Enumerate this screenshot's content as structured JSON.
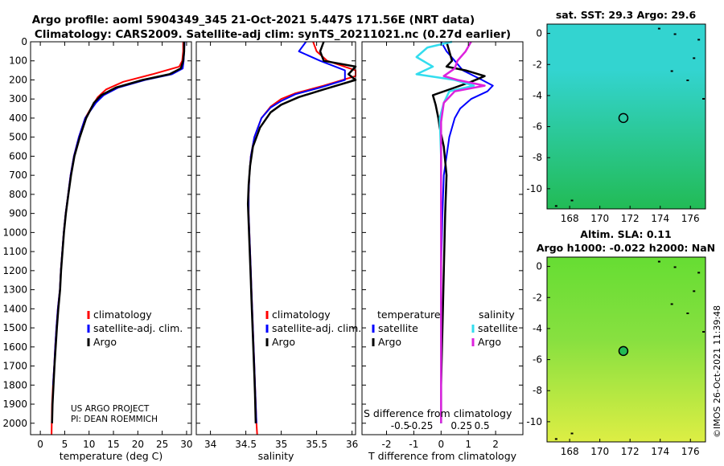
{
  "title": {
    "line1": "Argo profile: aoml 5904349_345 21-Oct-2021 5.447S 171.56E (NRT data)",
    "line2": "Climatology: CARS2009. Satellite-adj clim: synTS_20211021.nc (0.27d earlier)"
  },
  "credit": {
    "project": "US ARGO PROJECT",
    "pi": "PI: DEAN ROEMMICH"
  },
  "watermark": "©IMOS 26-Oct-2021 11:39:48",
  "colors": {
    "clim": "#ff0000",
    "sat": "#0000ff",
    "argo": "#000000",
    "sat_sal": "#33ddee",
    "argo_sal": "#dd22dd",
    "sst_high": "#33d4d0",
    "sst_low": "#22bb55",
    "sla_high": "#66dd33",
    "sla_low": "#ddee44"
  },
  "chart_data": [
    {
      "id": "temp",
      "type": "line",
      "xlabel": "temperature (deg C)",
      "xlim": [
        -2,
        31
      ],
      "xticks": [
        0,
        5,
        10,
        15,
        20,
        25,
        30
      ],
      "xtick_labels": [
        "0",
        "5",
        "10",
        "15",
        "20",
        "25",
        "30"
      ],
      "ylim": [
        0,
        2060
      ],
      "yticks": [
        0,
        100,
        200,
        300,
        400,
        500,
        600,
        700,
        800,
        900,
        1000,
        1100,
        1200,
        1300,
        1400,
        1500,
        1600,
        1700,
        1800,
        1900,
        2000
      ],
      "ytick_labels": [
        "0",
        "100",
        "200",
        "300",
        "400",
        "500",
        "600",
        "700",
        "800",
        "900",
        "1000",
        "1100",
        "1200",
        "1300",
        "1400",
        "1500",
        "1600",
        "1700",
        "1800",
        "1900",
        "2000"
      ],
      "legend": [
        "climatology",
        "satellite-adj. clim.",
        "Argo"
      ],
      "series": [
        {
          "name": "climatology",
          "color": "#ff0000",
          "width": 2,
          "x": [
            29.3,
            29.3,
            29.1,
            28.5,
            23,
            17,
            13.5,
            11.8,
            10.8,
            9.2,
            7.9,
            6.9,
            6.2,
            5.7,
            5.2,
            4.8,
            4.5,
            4.2,
            4,
            3.6,
            3.3,
            3.05,
            2.85,
            2.6,
            2.4,
            2.3
          ],
          "y": [
            0,
            50,
            100,
            130,
            170,
            210,
            250,
            290,
            330,
            400,
            500,
            600,
            700,
            800,
            900,
            1000,
            1100,
            1200,
            1300,
            1400,
            1500,
            1600,
            1700,
            1800,
            1900,
            2060
          ]
        },
        {
          "name": "satellite-adj. clim.",
          "color": "#0000ff",
          "width": 2,
          "x": [
            29.6,
            29.5,
            29.4,
            29.2,
            27,
            21.5,
            16,
            13,
            11.4,
            9.2,
            7.9,
            6.9,
            6.2,
            5.7,
            5.2,
            4.8,
            4.5,
            4.2,
            4,
            3.6,
            3.3,
            3.05,
            2.85,
            2.6
          ],
          "y": [
            0,
            50,
            100,
            140,
            170,
            200,
            240,
            280,
            320,
            400,
            500,
            600,
            700,
            800,
            900,
            1000,
            1100,
            1200,
            1300,
            1400,
            1500,
            1600,
            1700,
            1800
          ]
        },
        {
          "name": "Argo",
          "color": "#000000",
          "width": 2.5,
          "x": [
            29.5,
            29.5,
            29.3,
            28.8,
            26.5,
            21,
            15.5,
            12.5,
            11,
            9.4,
            8.1,
            7,
            6.3,
            5.75,
            5.25,
            4.85,
            4.55,
            4.25,
            4.05,
            3.7,
            3.4,
            3.15,
            2.9,
            2.7,
            2.5,
            2.4
          ],
          "y": [
            0,
            50,
            100,
            140,
            170,
            200,
            240,
            280,
            320,
            400,
            500,
            600,
            700,
            800,
            900,
            1000,
            1100,
            1200,
            1300,
            1400,
            1500,
            1600,
            1700,
            1800,
            1900,
            2000
          ]
        }
      ]
    },
    {
      "id": "salinity",
      "type": "line",
      "xlabel": "salinity",
      "xlim": [
        33.8,
        36.05
      ],
      "xticks": [
        34,
        34.5,
        35,
        35.5,
        36
      ],
      "xtick_labels": [
        "34",
        "34.5",
        "35",
        "35.5",
        "36"
      ],
      "ylim": [
        0,
        2060
      ],
      "legend": [
        "climatology",
        "satellite-adj. clim.",
        "Argo"
      ],
      "series": [
        {
          "name": "climatology",
          "color": "#ff0000",
          "width": 2,
          "x": [
            35.45,
            35.5,
            35.65,
            36.05,
            36.05,
            35.6,
            35.2,
            35.0,
            34.85,
            34.72,
            34.62,
            34.57,
            34.55,
            34.54,
            34.54,
            34.55,
            34.56,
            34.57,
            34.58,
            34.59,
            34.6,
            34.61,
            34.62,
            34.63,
            34.64,
            34.65,
            34.66
          ],
          "y": [
            0,
            50,
            100,
            150,
            180,
            230,
            270,
            300,
            340,
            400,
            500,
            600,
            700,
            800,
            900,
            1000,
            1100,
            1200,
            1300,
            1400,
            1500,
            1600,
            1700,
            1800,
            1900,
            2000,
            2060
          ]
        },
        {
          "name": "satellite-adj. clim.",
          "color": "#0000ff",
          "width": 2,
          "x": [
            35.35,
            35.25,
            35.55,
            35.9,
            35.9,
            35.55,
            35.2,
            35.0,
            34.85,
            34.72,
            34.62,
            34.57,
            34.55,
            34.54,
            34.54,
            34.55,
            34.56,
            34.57,
            34.58,
            34.59,
            34.6,
            34.61,
            34.62,
            34.63,
            34.64,
            34.65
          ],
          "y": [
            0,
            50,
            100,
            150,
            200,
            240,
            275,
            310,
            345,
            400,
            500,
            600,
            700,
            800,
            900,
            1000,
            1100,
            1200,
            1300,
            1400,
            1500,
            1600,
            1700,
            1800,
            1900,
            2000
          ]
        },
        {
          "name": "Argo",
          "color": "#000000",
          "width": 2.5,
          "x": [
            35.6,
            35.55,
            35.6,
            36.05,
            35.95,
            36.05,
            35.6,
            35.25,
            35.0,
            34.85,
            34.7,
            34.6,
            34.56,
            34.54,
            34.53,
            34.54,
            34.55,
            34.56,
            34.57,
            34.58,
            34.59,
            34.6,
            34.61,
            34.62,
            34.63,
            34.64
          ],
          "y": [
            0,
            50,
            100,
            130,
            170,
            200,
            250,
            290,
            330,
            370,
            450,
            550,
            650,
            750,
            850,
            950,
            1050,
            1150,
            1250,
            1350,
            1450,
            1550,
            1650,
            1750,
            1850,
            2000
          ]
        }
      ]
    },
    {
      "id": "difference",
      "type": "line",
      "xlabel": "T difference from climatology",
      "toplabel": "S difference from climatology",
      "xlim": [
        -2.9,
        3
      ],
      "xticks": [
        -2,
        -1,
        0,
        1,
        2
      ],
      "xtick_labels": [
        "-2",
        "-1",
        "0",
        "1",
        "2"
      ],
      "sticks": [
        -1.5,
        -0.75,
        0.75,
        1.5
      ],
      "stick_labels": [
        "-0.5",
        "-0.25",
        "0.25",
        "0.5"
      ],
      "ylim": [
        0,
        2060
      ],
      "legend_groups": [
        {
          "title": "temperature",
          "items": [
            "satellite",
            "Argo"
          ]
        },
        {
          "title": "salinity",
          "items": [
            "satellite",
            "Argo"
          ]
        }
      ],
      "series": [
        {
          "name": "temperature satellite",
          "color": "#0000ff",
          "width": 2,
          "x": [
            0,
            0.2,
            0.5,
            0.8,
            1.5,
            1.9,
            1.7,
            1.1,
            0.7,
            0.5,
            0.3,
            0.1,
            0.05,
            0,
            0,
            0
          ],
          "y": [
            0,
            50,
            100,
            150,
            200,
            230,
            260,
            300,
            350,
            400,
            500,
            700,
            900,
            1200,
            1500,
            2000
          ]
        },
        {
          "name": "temperature Argo",
          "color": "#000000",
          "width": 2.5,
          "x": [
            0.2,
            0.3,
            0.4,
            0.2,
            0.9,
            1.6,
            1.1,
            0.5,
            -0.3,
            -0.2,
            -0.1,
            -0.05,
            0.1,
            0.2,
            0.15,
            0.1,
            0.05,
            0,
            0
          ],
          "y": [
            0,
            50,
            100,
            130,
            150,
            180,
            210,
            240,
            280,
            330,
            400,
            450,
            550,
            700,
            900,
            1200,
            1500,
            1800,
            2000
          ]
        },
        {
          "name": "salinity satellite",
          "color": "#33ddee",
          "width": 2.5,
          "x": [
            0.4,
            -0.5,
            -0.9,
            -0.3,
            -0.9,
            0.5,
            1.2,
            0.3,
            0.1,
            -0.05,
            0,
            0,
            0,
            0
          ],
          "y": [
            0,
            30,
            80,
            130,
            170,
            200,
            230,
            260,
            320,
            400,
            600,
            900,
            1400,
            2000
          ]
        },
        {
          "name": "salinity Argo",
          "color": "#dd22dd",
          "width": 2.5,
          "x": [
            1.1,
            0.9,
            0.6,
            0.5,
            0.1,
            0.6,
            1.6,
            0.5,
            0.1,
            0,
            0,
            0,
            0
          ],
          "y": [
            0,
            50,
            100,
            140,
            180,
            200,
            230,
            260,
            320,
            420,
            700,
            1200,
            2000
          ]
        }
      ]
    },
    {
      "id": "sst_map",
      "type": "heatmap",
      "title": "sat. SST: 29.3 Argo: 29.6",
      "xlim": [
        166.5,
        177
      ],
      "xticks": [
        168,
        170,
        172,
        174,
        176
      ],
      "xtick_labels": [
        "168",
        "170",
        "172",
        "174",
        "176"
      ],
      "ylim": [
        -11.3,
        0.6
      ],
      "yticks": [
        0,
        -2,
        -4,
        -6,
        -8,
        -10
      ],
      "ytick_labels": [
        "0",
        "-2",
        "-4",
        "-6",
        "-8",
        "-10"
      ],
      "marker": {
        "lon": 171.56,
        "lat": -5.447
      },
      "sat_sst": 29.3,
      "argo_sst": 29.6
    },
    {
      "id": "sla_map",
      "type": "heatmap",
      "title": "Altim. SLA: 0.11",
      "subtitle": "Argo h1000: -0.022 h2000: NaN",
      "xlim": [
        166.5,
        177
      ],
      "xticks": [
        168,
        170,
        172,
        174,
        176
      ],
      "xtick_labels": [
        "168",
        "170",
        "172",
        "174",
        "176"
      ],
      "ylim": [
        -11.3,
        0.6
      ],
      "yticks": [
        0,
        -2,
        -4,
        -6,
        -8,
        -10
      ],
      "ytick_labels": [
        "0",
        "-2",
        "-4",
        "-6",
        "-8",
        "-10"
      ],
      "marker": {
        "lon": 171.56,
        "lat": -5.447
      },
      "sla": 0.11,
      "h1000": -0.022,
      "h2000": "NaN"
    }
  ]
}
